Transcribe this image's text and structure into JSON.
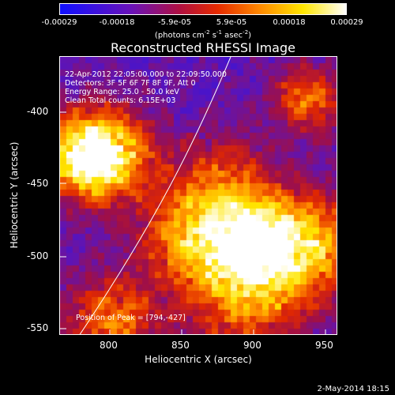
{
  "colorbar": {
    "ticks": [
      "-0.00029",
      "-0.00018",
      "-5.9e-05",
      "5.9e-05",
      "0.00018",
      "0.00029"
    ],
    "units_main": "(photons cm",
    "units_exp1": "-2",
    "units_mid1": " s",
    "units_exp2": "-1",
    "units_mid2": " asec",
    "units_exp3": "-2",
    "units_close": ")"
  },
  "plot": {
    "title": "Reconstructed RHESSI Image",
    "xlabel": "Heliocentric X (arcsec)",
    "ylabel": "Heliocentric Y (arcsec)",
    "xticks": [
      "800",
      "850",
      "900",
      "950"
    ],
    "yticks": [
      "-400",
      "-450",
      "-500",
      "-550"
    ],
    "info": [
      "22-Apr-2012 22:05:00.000 to 22:09:50.000",
      "Detectors: 3F 5F 6F 7F 8F 9F, Att 0",
      "Energy Range: 25.0 - 50.0 keV",
      "Clean    Total counts: 6.15E+03"
    ],
    "peak_label": "Position of Peak = [794,-427]",
    "xlim": [
      765,
      960
    ],
    "ylim": [
      -555,
      -370
    ],
    "peak": [
      794,
      -427
    ]
  },
  "footer": {
    "date": "2-May-2014 18:15"
  }
}
